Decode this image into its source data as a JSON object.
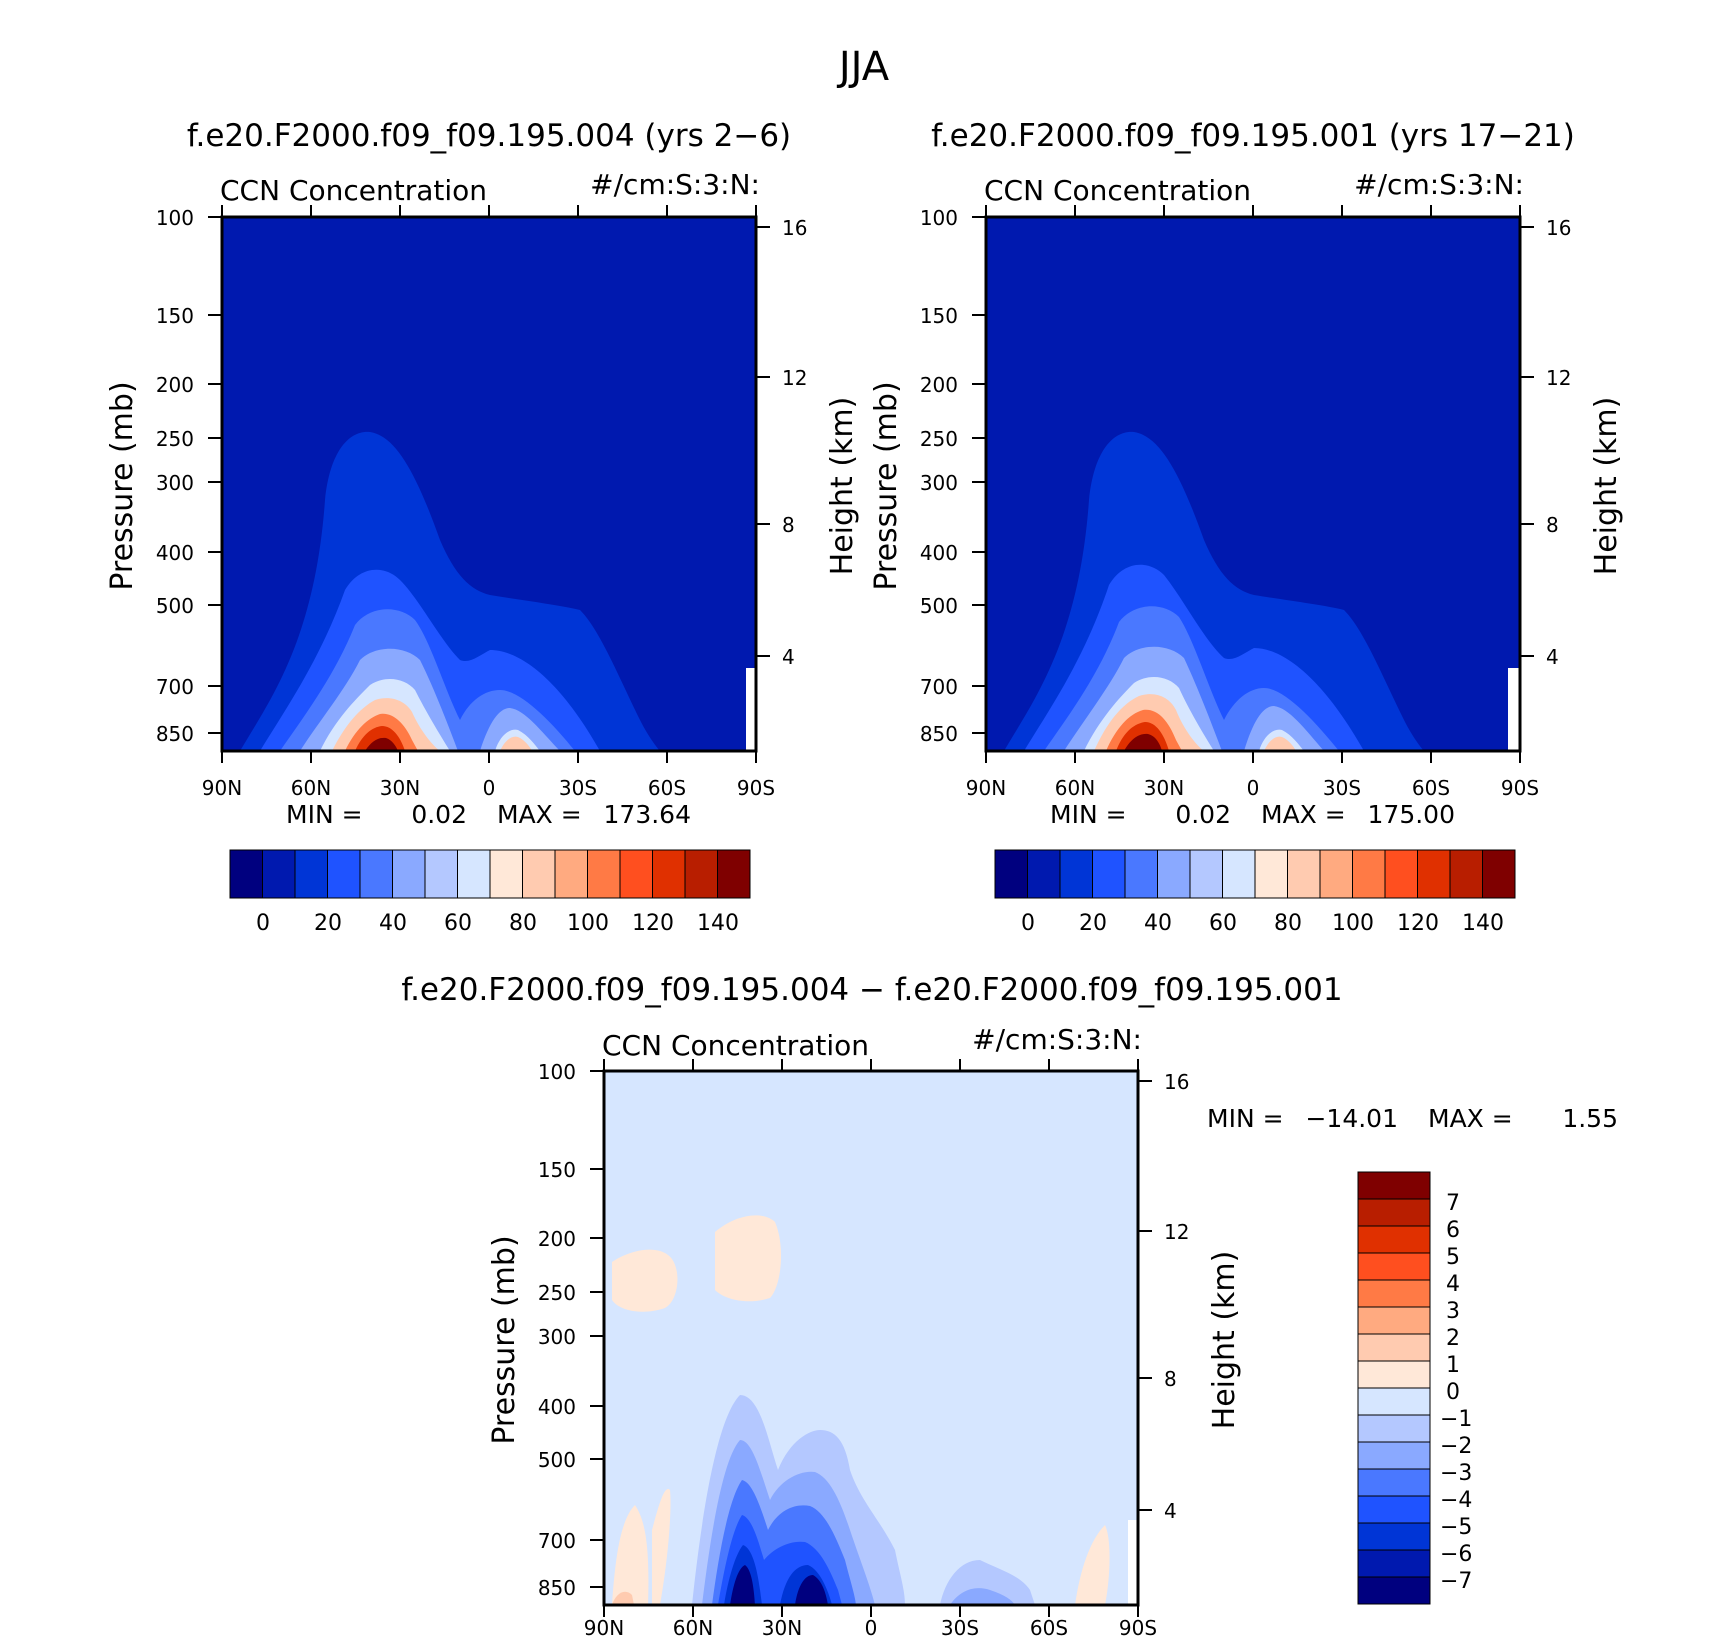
{
  "main_title": "JJA",
  "colors": {
    "scale": [
      "#00007f",
      "#0019af",
      "#0035d6",
      "#1f53ff",
      "#4a78ff",
      "#8aa9ff",
      "#b4c8ff",
      "#d6e6ff",
      "#ffe8d8",
      "#ffcbb0",
      "#ffaa80",
      "#ff7a45",
      "#ff4f1f",
      "#e03000",
      "#b81e00",
      "#7f0000"
    ]
  },
  "chart_data": [
    {
      "type": "contour",
      "title": "f.e20.F2000.f09_f09.195.004 (yrs 2−6)",
      "subtitle_left": "CCN Concentration",
      "subtitle_right": "#/cm:S:3:N:",
      "xlabel": "",
      "ylabel": "Pressure (mb)",
      "y2label": "Height (km)",
      "x_ticks": [
        "90N",
        "60N",
        "30N",
        "0",
        "30S",
        "60S",
        "90S"
      ],
      "y_ticks": [
        "100",
        "150",
        "200",
        "250",
        "300",
        "400",
        "500",
        "700",
        "850"
      ],
      "y2_ticks": [
        "16",
        "12",
        "8",
        "4"
      ],
      "stats": {
        "min_label": "MIN =",
        "min": "0.02",
        "max_label": "MAX =",
        "max": "173.64"
      },
      "colorbar_labels": [
        "0",
        "20",
        "40",
        "60",
        "80",
        "100",
        "120",
        "140"
      ],
      "min": 0.02,
      "max": 173.64
    },
    {
      "type": "contour",
      "title": "f.e20.F2000.f09_f09.195.001 (yrs 17−21)",
      "subtitle_left": "CCN Concentration",
      "subtitle_right": "#/cm:S:3:N:",
      "xlabel": "",
      "ylabel": "Pressure (mb)",
      "y2label": "Height (km)",
      "x_ticks": [
        "90N",
        "60N",
        "30N",
        "0",
        "30S",
        "60S",
        "90S"
      ],
      "y_ticks": [
        "100",
        "150",
        "200",
        "250",
        "300",
        "400",
        "500",
        "700",
        "850"
      ],
      "y2_ticks": [
        "16",
        "12",
        "8",
        "4"
      ],
      "stats": {
        "min_label": "MIN =",
        "min": "0.02",
        "max_label": "MAX =",
        "max": "175.00"
      },
      "colorbar_labels": [
        "0",
        "20",
        "40",
        "60",
        "80",
        "100",
        "120",
        "140"
      ],
      "min": 0.02,
      "max": 175.0
    },
    {
      "type": "contour",
      "title": "f.e20.F2000.f09_f09.195.004 − f.e20.F2000.f09_f09.195.001",
      "subtitle_left": "CCN Concentration",
      "subtitle_right": "#/cm:S:3:N:",
      "xlabel": "",
      "ylabel": "Pressure (mb)",
      "y2label": "Height (km)",
      "x_ticks": [
        "90N",
        "60N",
        "30N",
        "0",
        "30S",
        "60S",
        "90S"
      ],
      "y_ticks": [
        "100",
        "150",
        "200",
        "250",
        "300",
        "400",
        "500",
        "700",
        "850"
      ],
      "y2_ticks": [
        "16",
        "12",
        "8",
        "4"
      ],
      "stats": {
        "min_label": "MIN =",
        "min": "−14.01",
        "max_label": "MAX =",
        "max": "1.55"
      },
      "colorbar_labels": [
        "7",
        "6",
        "5",
        "4",
        "3",
        "2",
        "1",
        "0",
        "−1",
        "−2",
        "−3",
        "−4",
        "−5",
        "−6",
        "−7"
      ],
      "min": -14.01,
      "max": 1.55
    }
  ]
}
